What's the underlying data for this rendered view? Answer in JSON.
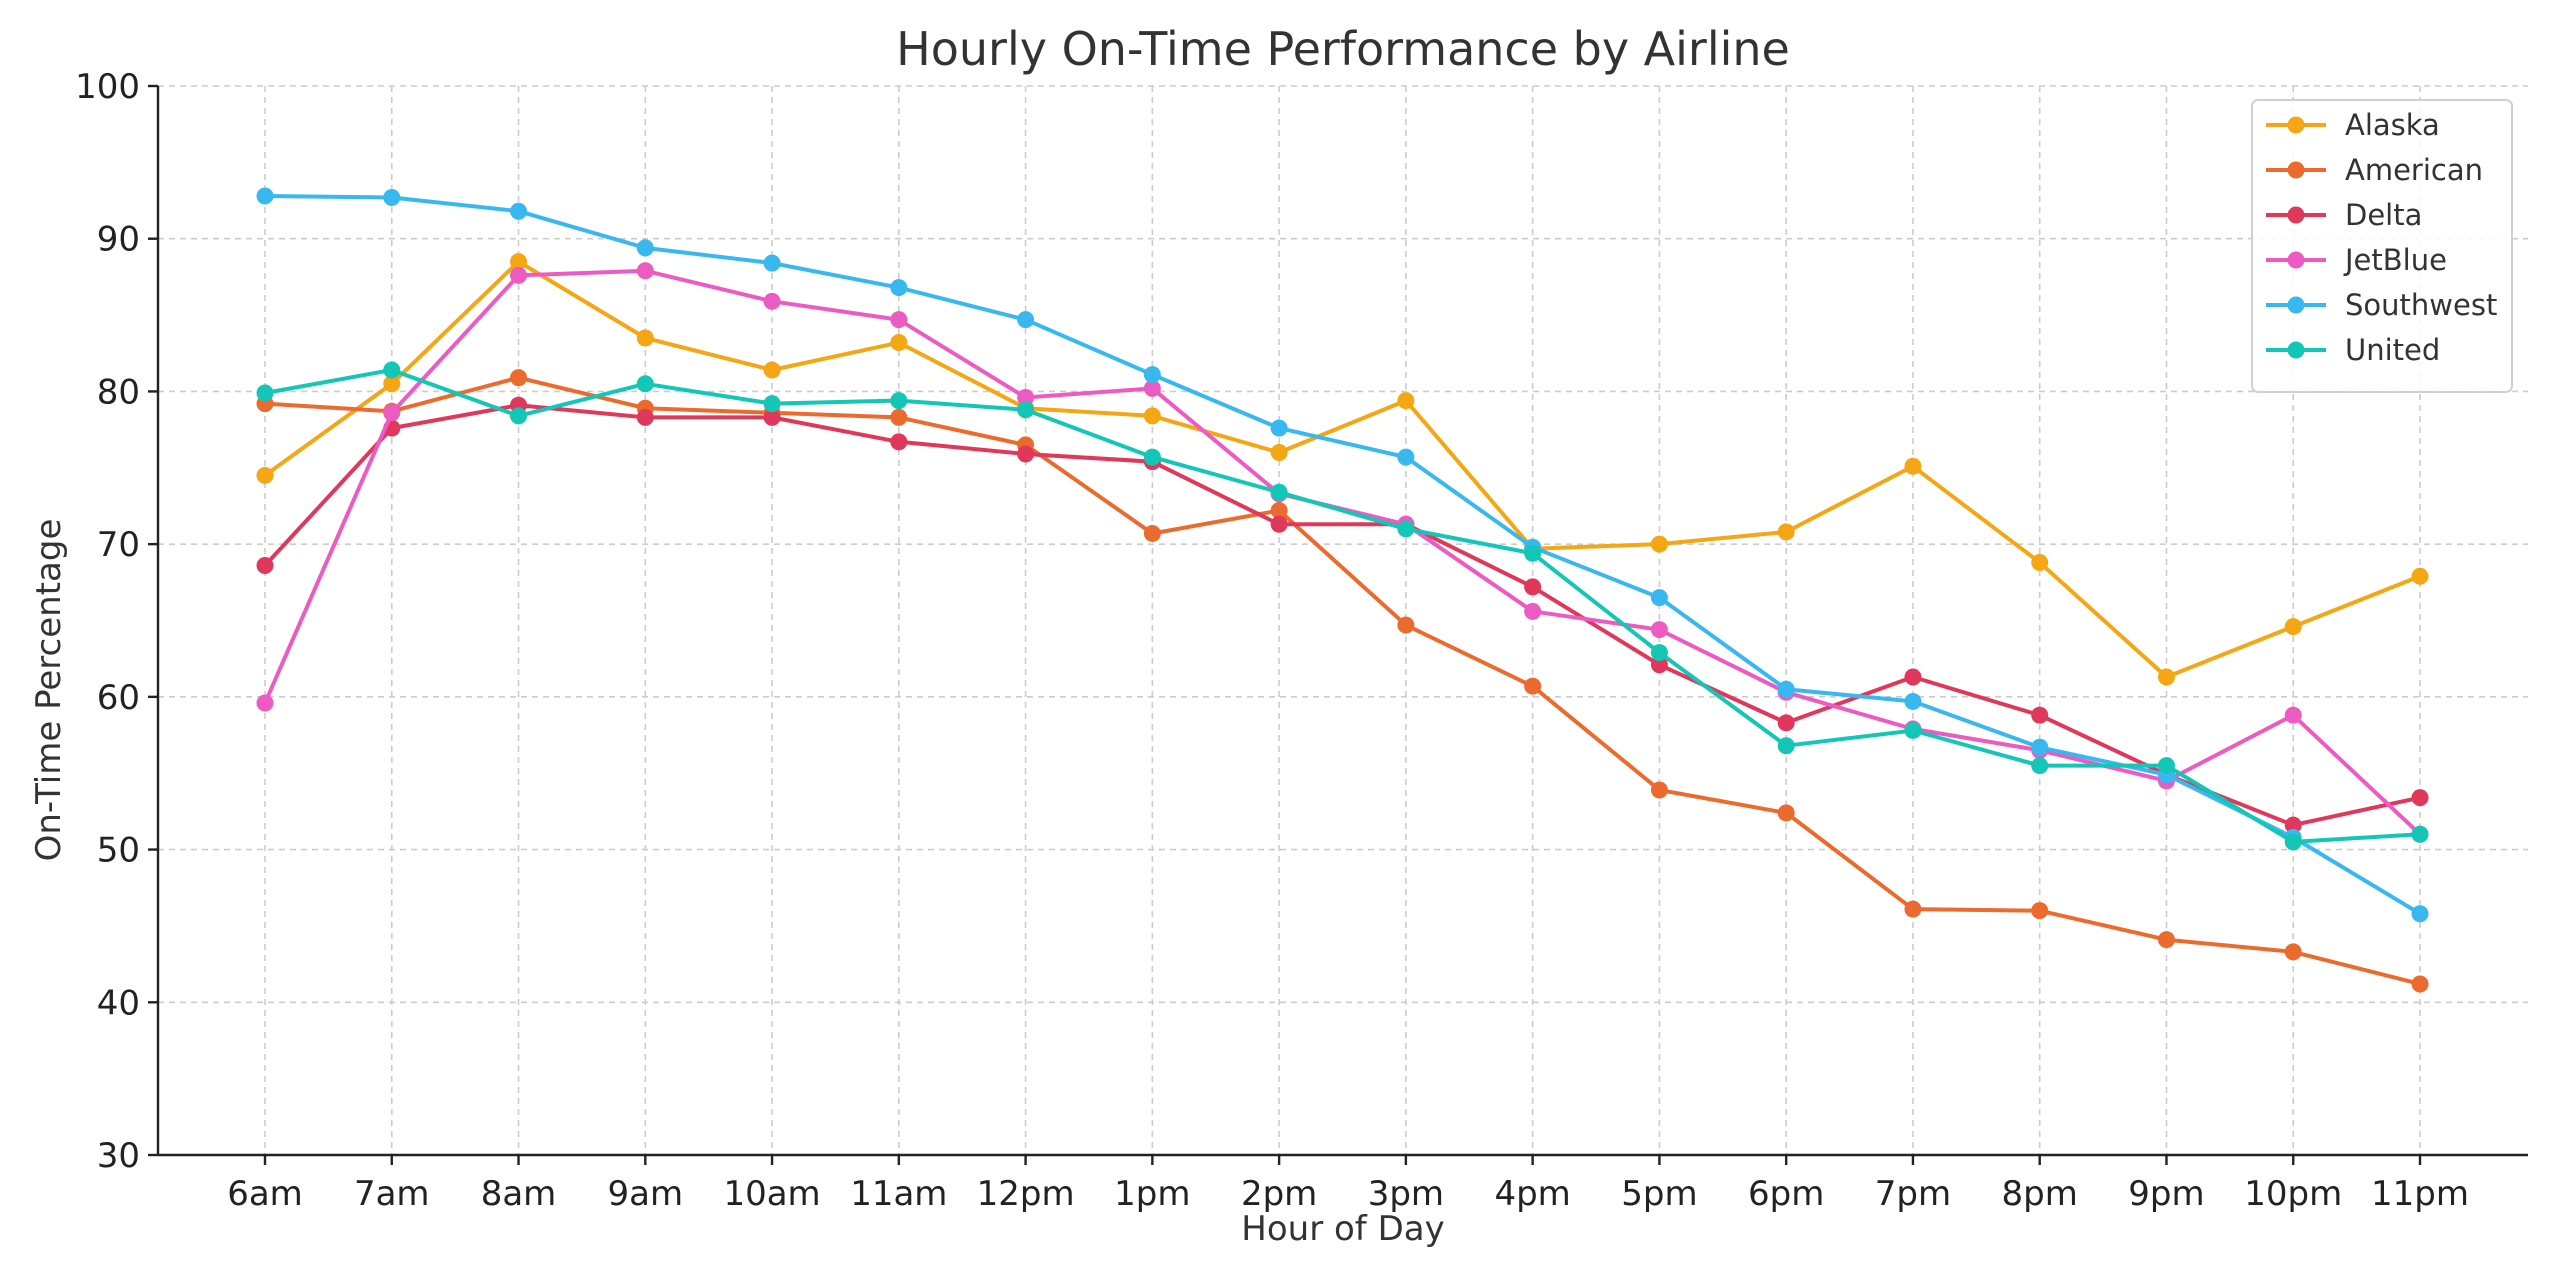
{
  "chart_data": {
    "type": "line",
    "title": "Hourly On-Time Performance by Airline",
    "xlabel": "Hour of Day",
    "ylabel": "On-Time Percentage",
    "ylim": [
      30,
      100
    ],
    "yticks": [
      30,
      40,
      50,
      60,
      70,
      80,
      90,
      100
    ],
    "grid": true,
    "legend_position": "top-right",
    "categories": [
      "6am",
      "7am",
      "8am",
      "9am",
      "10am",
      "11am",
      "12pm",
      "1pm",
      "2pm",
      "3pm",
      "4pm",
      "5pm",
      "6pm",
      "7pm",
      "8pm",
      "9pm",
      "10pm",
      "11pm"
    ],
    "series": [
      {
        "name": "Alaska",
        "color": "#F5A614",
        "values": [
          74.5,
          80.5,
          88.5,
          83.5,
          81.4,
          83.2,
          78.9,
          78.4,
          76.0,
          79.4,
          69.7,
          70.0,
          70.8,
          75.1,
          68.8,
          61.3,
          64.6,
          67.9
        ]
      },
      {
        "name": "American",
        "color": "#EA6B2D",
        "values": [
          79.2,
          78.7,
          80.9,
          78.9,
          78.6,
          78.3,
          76.5,
          70.7,
          72.2,
          64.7,
          60.7,
          53.9,
          52.4,
          46.1,
          46.0,
          44.1,
          43.3,
          41.2
        ]
      },
      {
        "name": "Delta",
        "color": "#E0385A",
        "values": [
          68.6,
          77.6,
          79.1,
          78.3,
          78.3,
          76.7,
          75.9,
          75.4,
          71.3,
          71.3,
          67.2,
          62.1,
          58.3,
          61.3,
          58.8,
          54.9,
          51.6,
          53.4
        ]
      },
      {
        "name": "JetBlue",
        "color": "#EC5BC2",
        "values": [
          59.6,
          78.6,
          87.6,
          87.9,
          85.9,
          84.7,
          79.6,
          80.2,
          73.3,
          71.3,
          65.6,
          64.4,
          60.3,
          57.9,
          56.5,
          54.5,
          58.8,
          51.0
        ]
      },
      {
        "name": "Southwest",
        "color": "#38B8EE",
        "values": [
          92.8,
          92.7,
          91.8,
          89.4,
          88.4,
          86.8,
          84.7,
          81.1,
          77.6,
          75.7,
          69.8,
          66.5,
          60.5,
          59.7,
          56.7,
          54.9,
          50.8,
          45.8
        ]
      },
      {
        "name": "United",
        "color": "#14C6B6",
        "values": [
          79.9,
          81.4,
          78.4,
          80.5,
          79.2,
          79.4,
          78.8,
          75.7,
          73.4,
          71.0,
          69.4,
          62.9,
          56.8,
          57.8,
          55.5,
          55.5,
          50.5,
          51.0
        ]
      }
    ]
  }
}
